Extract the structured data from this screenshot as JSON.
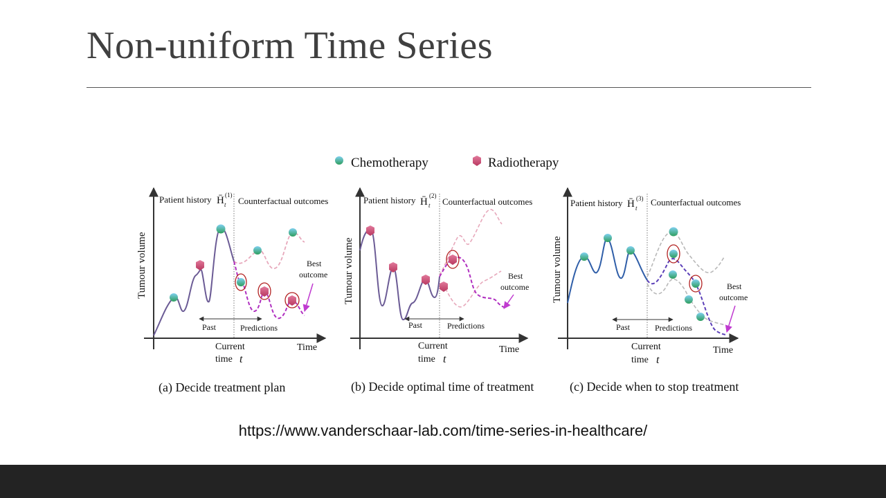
{
  "slide": {
    "title": "Non-uniform Time Series",
    "source_url": "https://www.vanderschaar-lab.com/time-series-in-healthcare/"
  },
  "legend": {
    "chemo": "Chemotherapy",
    "radio": "Radiotherapy"
  },
  "panels": [
    {
      "history_label": "Patient history",
      "history_symbol": "H̄",
      "history_index": "(1)",
      "history_sub": "t",
      "counterfactual_label": "Counterfactual outcomes",
      "y_label": "Tumour volume",
      "x_label": "Time",
      "past_label": "Past",
      "predictions_label": "Predictions",
      "current_label": "Current",
      "time_label": "time",
      "t_symbol": "t",
      "best_label_1": "Best",
      "best_label_2": "outcome",
      "caption": "(a) Decide treatment plan"
    },
    {
      "history_label": "Patient history",
      "history_symbol": "H̄",
      "history_index": "(2)",
      "history_sub": "t",
      "counterfactual_label": "Counterfactual outcomes",
      "y_label": "Tumour volume",
      "x_label": "Time",
      "past_label": "Past",
      "predictions_label": "Predictions",
      "current_label": "Current",
      "time_label": "time",
      "t_symbol": "t",
      "best_label_1": "Best",
      "best_label_2": "outcome",
      "caption": "(b) Decide optimal time of treatment"
    },
    {
      "history_label": "Patient history",
      "history_symbol": "H̄",
      "history_index": "(3)",
      "history_sub": "t",
      "counterfactual_label": "Counterfactual outcomes",
      "y_label": "Tumour volume",
      "x_label": "Time",
      "past_label": "Past",
      "predictions_label": "Predictions",
      "current_label": "Current",
      "time_label": "time",
      "t_symbol": "t",
      "best_label_1": "Best",
      "best_label_2": "outcome",
      "caption": "(c) Decide when to stop treatment"
    }
  ],
  "colors": {
    "history_line_a": "#6b5b95",
    "history_line_c": "#2f5ea8",
    "best_path": "#b02fc0",
    "alt_path": "#e8a6b8",
    "grey_path": "#b8b8b8",
    "chemo_top": "#6fc3e6",
    "chemo_bottom": "#3aa36a",
    "radio": "#d0567f",
    "highlight_circle": "#b22222",
    "footer": "#232323"
  }
}
